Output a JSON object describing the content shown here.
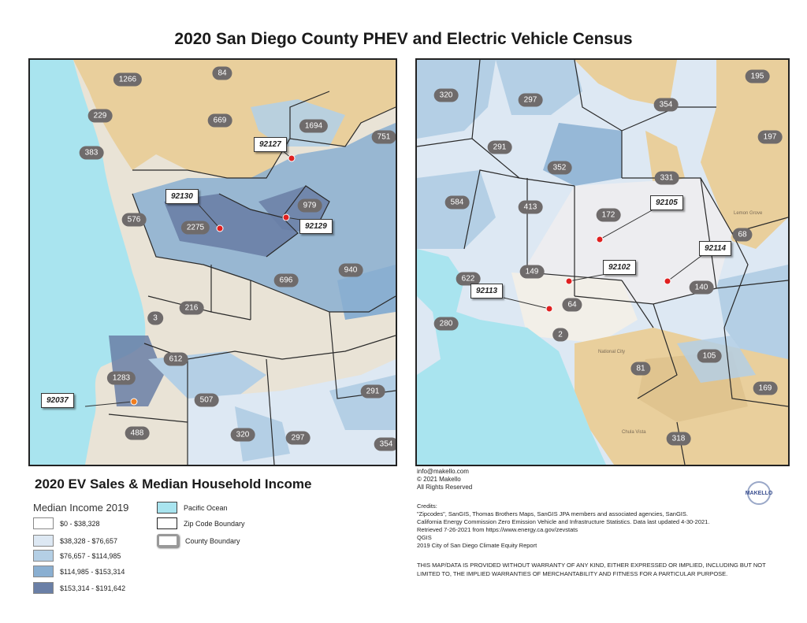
{
  "title": "2020 San Diego County PHEV and Electric Vehicle Census",
  "colors": {
    "ocean": "#a9e4ef",
    "land_base": "#e9e3d6",
    "income_0": "#ffffff",
    "income_1": "#dde8f3",
    "income_2": "#b4cfe5",
    "income_3": "#8aafd1",
    "income_4": "#6a7fa6",
    "tan_area": "#e9cf9c",
    "marker_red": "#e02020",
    "marker_orange": "#f07d1e",
    "count_badge": "#6f6b6b"
  },
  "left_map": {
    "zip_counts": [
      "1266",
      "84",
      "229",
      "669",
      "1694",
      "751",
      "383",
      "979",
      "576",
      "2275",
      "940",
      "696",
      "216",
      "3",
      "612",
      "1283",
      "507",
      "291",
      "488",
      "320",
      "297",
      "354"
    ],
    "callouts": [
      "92127",
      "92130",
      "92129",
      "92037"
    ]
  },
  "right_map": {
    "zip_counts": [
      "320",
      "297",
      "195",
      "354",
      "291",
      "197",
      "352",
      "331",
      "584",
      "413",
      "172",
      "68",
      "149",
      "622",
      "140",
      "64",
      "280",
      "2",
      "105",
      "81",
      "169",
      "318"
    ],
    "callouts": [
      "92105",
      "92102",
      "92114",
      "92113"
    ],
    "places": [
      "National City",
      "Chula Vista",
      "Lemon Grove"
    ]
  },
  "legend": {
    "title": "2020 EV Sales & Median Household Income",
    "subtitle": "Median Income 2019",
    "income_ranges": [
      "$0 - $38,328",
      "$38,328 - $76,657",
      "$76,657 - $114,985",
      "$114,985 - $153,314",
      "$153,314 - $191,642"
    ],
    "pacific_ocean": "Pacific Ocean",
    "zip_boundary": "Zip Code Boundary",
    "county_boundary": "County Boundary"
  },
  "contact": {
    "email": "info@makello.com",
    "copyright": "© 2021 Makello",
    "rights": "All Rights Reserved"
  },
  "logo_text": "MAKELLO",
  "credits": {
    "heading": "Credits:",
    "lines": [
      "\"Zipcodes\", SanGIS, Thomas Brothers Maps, SanGIS JPA members and associated agencies, SanGIS.",
      "California Energy Commission Zero Emission Vehicle and Infrastructure Statistics. Data last updated 4-30-2021.",
      "Retrieved 7-26-2021 from https://www.energy.ca.gov/zevstats",
      " QGIS",
      "2019 City of San Diego Climate Equity Report"
    ]
  },
  "disclaimer": "THIS MAP/DATA IS PROVIDED WITHOUT WARRANTY OF ANY KIND, EITHER EXPRESSED OR IMPLIED, INCLUDING BUT NOT LIMITED TO, THE IMPLIED WARRANTIES OF MERCHANTABILITY AND FITNESS FOR A PARTICULAR PURPOSE."
}
